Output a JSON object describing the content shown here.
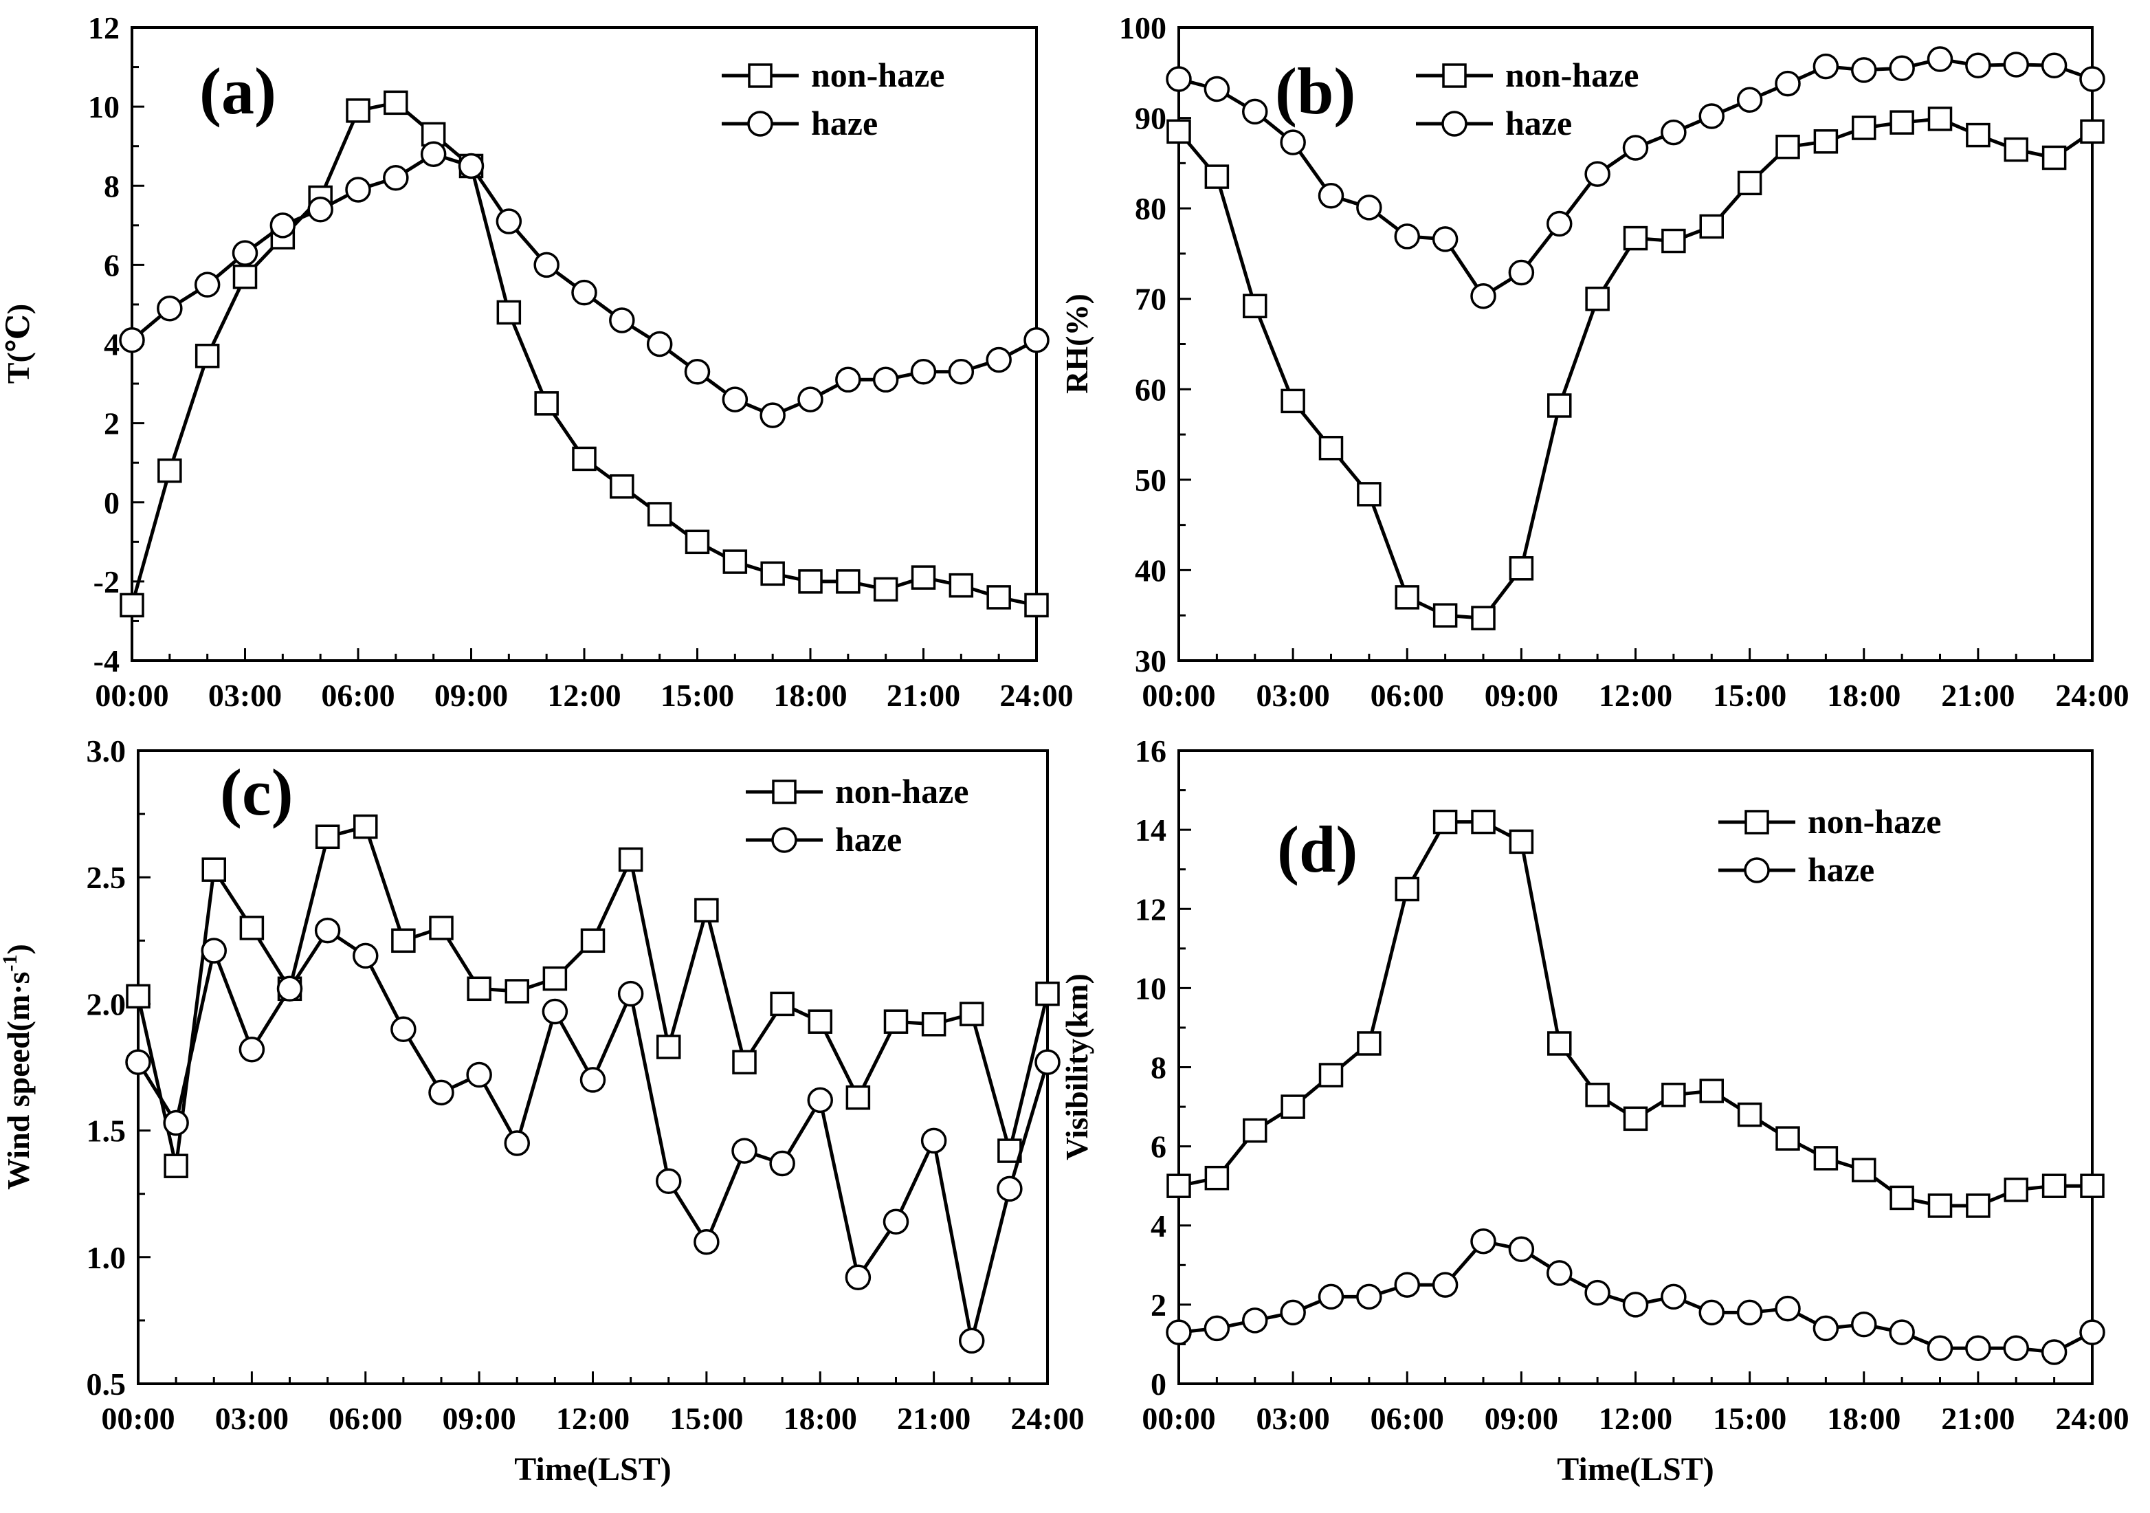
{
  "figure": {
    "x_tick_labels": [
      "00:00",
      "03:00",
      "06:00",
      "09:00",
      "12:00",
      "15:00",
      "18:00",
      "21:00",
      "24:00"
    ],
    "x_label": "Time(LST)",
    "legend": {
      "non_haze": "non-haze",
      "haze": "haze"
    }
  },
  "chart_data": [
    {
      "type": "line",
      "panel_label": "(a)",
      "ylabel": "T(℃)",
      "xlabel": "",
      "x": [
        0,
        1,
        2,
        3,
        4,
        5,
        6,
        7,
        8,
        9,
        10,
        11,
        12,
        13,
        14,
        15,
        16,
        17,
        18,
        19,
        20,
        21,
        22,
        23,
        24
      ],
      "xlim": [
        0,
        24
      ],
      "ylim": [
        -4,
        12
      ],
      "yticks": [
        -4,
        -2,
        0,
        2,
        4,
        6,
        8,
        10,
        12
      ],
      "tick_labels": [
        "-4",
        "-2",
        "0",
        "2",
        "4",
        "6",
        "8",
        "10",
        "12"
      ],
      "series": [
        {
          "name": "non-haze",
          "marker": "square",
          "values": [
            -2.6,
            0.8,
            3.7,
            5.7,
            6.7,
            7.7,
            9.9,
            10.1,
            9.3,
            8.5,
            4.8,
            2.5,
            1.1,
            0.4,
            -0.3,
            -1.0,
            -1.5,
            -1.8,
            -2.0,
            -2.0,
            -2.2,
            -1.9,
            -2.1,
            -2.4,
            -2.6
          ]
        },
        {
          "name": "haze",
          "marker": "circle",
          "values": [
            4.1,
            4.9,
            5.5,
            6.3,
            7.0,
            7.4,
            7.9,
            8.2,
            8.8,
            8.5,
            7.1,
            6.0,
            5.3,
            4.6,
            4.0,
            3.3,
            2.6,
            2.2,
            2.6,
            3.1,
            3.1,
            3.3,
            3.3,
            3.6,
            4.1
          ]
        }
      ]
    },
    {
      "type": "line",
      "panel_label": "(b)",
      "ylabel": "RH(%)",
      "xlabel": "",
      "x": [
        0,
        1,
        2,
        3,
        4,
        5,
        6,
        7,
        8,
        9,
        10,
        11,
        12,
        13,
        14,
        15,
        16,
        17,
        18,
        19,
        20,
        21,
        22,
        23,
        24
      ],
      "xlim": [
        0,
        24
      ],
      "ylim": [
        30,
        100
      ],
      "yticks": [
        30,
        40,
        50,
        60,
        70,
        80,
        90,
        100
      ],
      "tick_labels": [
        "30",
        "40",
        "50",
        "60",
        "70",
        "80",
        "90",
        "100"
      ],
      "series": [
        {
          "name": "non-haze",
          "marker": "square",
          "values": [
            88.5,
            83.5,
            69.2,
            58.7,
            53.5,
            48.4,
            37.0,
            35.0,
            34.7,
            40.2,
            58.2,
            70.0,
            76.7,
            76.4,
            78.0,
            82.8,
            86.8,
            87.4,
            88.9,
            89.5,
            89.9,
            88.1,
            86.5,
            85.6,
            88.5
          ]
        },
        {
          "name": "haze",
          "marker": "circle",
          "values": [
            94.3,
            93.2,
            90.7,
            87.3,
            81.4,
            80.1,
            76.9,
            76.6,
            70.3,
            72.9,
            78.3,
            83.8,
            86.7,
            88.4,
            90.2,
            92.0,
            93.8,
            95.7,
            95.3,
            95.5,
            96.5,
            95.8,
            95.9,
            95.8,
            94.3
          ]
        }
      ]
    },
    {
      "type": "line",
      "panel_label": "(c)",
      "ylabel": "Wind speed(m·s-1)",
      "ylabel_text": "Wind speed(m·s",
      "ylabel_superscript": "-1",
      "ylabel_tail": ")",
      "xlabel": "Time(LST)",
      "x": [
        0,
        1,
        2,
        3,
        4,
        5,
        6,
        7,
        8,
        9,
        10,
        11,
        12,
        13,
        14,
        15,
        16,
        17,
        18,
        19,
        20,
        21,
        22,
        23,
        24
      ],
      "xlim": [
        0,
        24
      ],
      "ylim": [
        0.5,
        3.0
      ],
      "yticks": [
        0.5,
        1.0,
        1.5,
        2.0,
        2.5,
        3.0
      ],
      "tick_labels": [
        "0.5",
        "1.0",
        "1.5",
        "2.0",
        "2.5",
        "3.0"
      ],
      "series": [
        {
          "name": "non-haze",
          "marker": "square",
          "values": [
            2.03,
            1.36,
            2.53,
            2.3,
            2.06,
            2.66,
            2.7,
            2.25,
            2.3,
            2.06,
            2.05,
            2.1,
            2.25,
            2.57,
            1.83,
            2.37,
            1.77,
            2.0,
            1.93,
            1.63,
            1.93,
            1.92,
            1.96,
            1.42,
            2.04
          ]
        },
        {
          "name": "haze",
          "marker": "circle",
          "values": [
            1.77,
            1.53,
            2.21,
            1.82,
            2.06,
            2.29,
            2.19,
            1.9,
            1.65,
            1.72,
            1.45,
            1.97,
            1.7,
            2.04,
            1.3,
            1.06,
            1.42,
            1.37,
            1.62,
            0.92,
            1.14,
            1.46,
            0.67,
            1.27,
            1.77
          ]
        }
      ]
    },
    {
      "type": "line",
      "panel_label": "(d)",
      "ylabel": "Visibility(km)",
      "xlabel": "Time(LST)",
      "x": [
        0,
        1,
        2,
        3,
        4,
        5,
        6,
        7,
        8,
        9,
        10,
        11,
        12,
        13,
        14,
        15,
        16,
        17,
        18,
        19,
        20,
        21,
        22,
        23,
        24
      ],
      "xlim": [
        0,
        24
      ],
      "ylim": [
        0,
        16
      ],
      "yticks": [
        0,
        2,
        4,
        6,
        8,
        10,
        12,
        14,
        16
      ],
      "tick_labels": [
        "0",
        "2",
        "4",
        "6",
        "8",
        "10",
        "12",
        "14",
        "16"
      ],
      "series": [
        {
          "name": "non-haze",
          "marker": "square",
          "values": [
            5.0,
            5.2,
            6.4,
            7.0,
            7.8,
            8.6,
            12.5,
            14.2,
            14.2,
            13.7,
            8.6,
            7.3,
            6.7,
            7.3,
            7.4,
            6.8,
            6.2,
            5.7,
            5.4,
            4.7,
            4.5,
            4.5,
            4.9,
            5.0,
            5.0
          ]
        },
        {
          "name": "haze",
          "marker": "circle",
          "values": [
            1.3,
            1.4,
            1.6,
            1.8,
            2.2,
            2.2,
            2.5,
            2.5,
            3.6,
            3.4,
            2.8,
            2.3,
            2.0,
            2.2,
            1.8,
            1.8,
            1.9,
            1.4,
            1.5,
            1.3,
            0.9,
            0.9,
            0.9,
            0.8,
            1.3
          ]
        }
      ]
    }
  ]
}
